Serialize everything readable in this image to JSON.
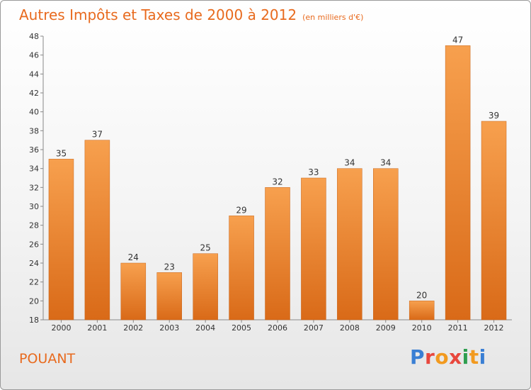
{
  "header": {
    "title": "Autres Impôts et Taxes de 2000 à 2012",
    "subtitle": "(en milliers d'€)"
  },
  "footer": {
    "commune": "POUANT",
    "brand": "Proxiti"
  },
  "colors": {
    "accent": "#e86a1e",
    "bar_top": "#f7a04e",
    "bar_bottom": "#d96a18"
  },
  "chart_data": {
    "type": "bar",
    "categories": [
      "2000",
      "2001",
      "2002",
      "2003",
      "2004",
      "2005",
      "2006",
      "2007",
      "2008",
      "2009",
      "2010",
      "2011",
      "2012"
    ],
    "values": [
      35,
      37,
      24,
      23,
      25,
      29,
      32,
      33,
      34,
      34,
      20,
      47,
      39
    ],
    "title": "Autres Impôts et Taxes de 2000 à 2012",
    "subtitle": "(en milliers d'€)",
    "xlabel": "",
    "ylabel": "",
    "ylim": [
      18,
      48
    ],
    "yticks": [
      18,
      20,
      22,
      24,
      26,
      28,
      30,
      32,
      34,
      36,
      38,
      40,
      42,
      44,
      46,
      48
    ],
    "grid": false,
    "data_labels": true
  }
}
